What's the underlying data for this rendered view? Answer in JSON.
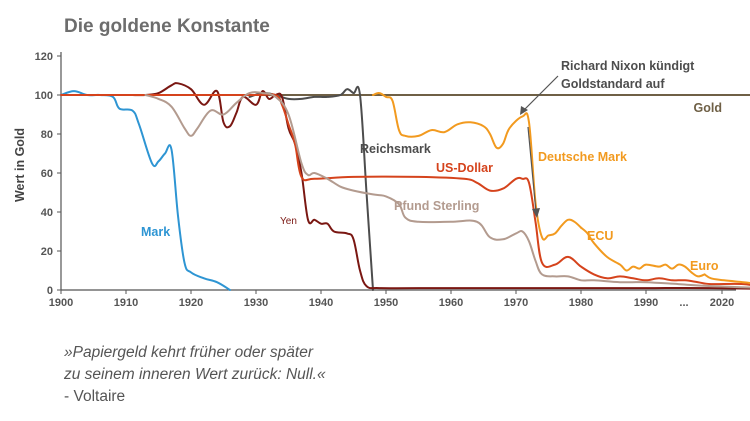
{
  "title": "Die goldene Konstante",
  "quote": {
    "lines": [
      "»Papiergeld kehrt früher oder später",
      "zu seinem inneren Wert zurück: Null.«"
    ],
    "author": "- Voltaire"
  },
  "chart_data": {
    "type": "line",
    "ylabel": "Wert in Gold",
    "ylim": [
      0,
      120
    ],
    "yticks": [
      0,
      20,
      40,
      60,
      80,
      100,
      120
    ],
    "xticks": [
      "1900",
      "1910",
      "1920",
      "1930",
      "1940",
      "1950",
      "1960",
      "1970",
      "1980",
      "1990",
      "...",
      "2020"
    ],
    "grid": false,
    "annotation": [
      "Richard Nixon kündigt",
      "Goldstandard auf"
    ],
    "series": [
      {
        "name": "Gold",
        "color": "#6f6046",
        "points": [
          [
            1900,
            100
          ],
          [
            2020,
            100
          ]
        ]
      },
      {
        "name": "Mark",
        "color": "#2e95d3",
        "points": [
          [
            1900,
            100
          ],
          [
            1902,
            102
          ],
          [
            1904,
            100
          ],
          [
            1906,
            100
          ],
          [
            1908,
            99
          ],
          [
            1909,
            93
          ],
          [
            1911,
            92
          ],
          [
            1912,
            85
          ],
          [
            1914,
            65
          ],
          [
            1915,
            66
          ],
          [
            1916,
            70
          ],
          [
            1917,
            72
          ],
          [
            1918,
            38
          ],
          [
            1919,
            14
          ],
          [
            1920,
            9
          ],
          [
            1922,
            6
          ],
          [
            1924,
            4
          ],
          [
            1926,
            0
          ]
        ]
      },
      {
        "name": "Reichsmark",
        "color": "#4d4d4d",
        "points": [
          [
            1929,
            99
          ],
          [
            1931,
            101
          ],
          [
            1933,
            100
          ],
          [
            1935,
            98
          ],
          [
            1937,
            98
          ],
          [
            1939,
            99
          ],
          [
            1941,
            99
          ],
          [
            1943,
            100
          ],
          [
            1944,
            103
          ],
          [
            1945,
            101
          ],
          [
            1946,
            100
          ],
          [
            1947,
            50
          ],
          [
            1948,
            0
          ]
        ]
      },
      {
        "name": "Yen",
        "color": "#7a1712",
        "points": [
          [
            1911,
            100
          ],
          [
            1913,
            100
          ],
          [
            1915,
            101
          ],
          [
            1917,
            105
          ],
          [
            1918,
            106
          ],
          [
            1920,
            103
          ],
          [
            1922,
            95
          ],
          [
            1924,
            102
          ],
          [
            1925,
            86
          ],
          [
            1926,
            84
          ],
          [
            1927,
            91
          ],
          [
            1928,
            99
          ],
          [
            1930,
            95
          ],
          [
            1931,
            102
          ],
          [
            1932,
            98
          ],
          [
            1933,
            100
          ],
          [
            1934,
            99
          ],
          [
            1935,
            83
          ],
          [
            1936,
            75
          ],
          [
            1937,
            60
          ],
          [
            1938,
            36
          ],
          [
            1939,
            36
          ],
          [
            1940,
            34
          ],
          [
            1941,
            34
          ],
          [
            1942,
            30
          ],
          [
            1944,
            29
          ],
          [
            1945,
            26
          ],
          [
            1946,
            10
          ],
          [
            1947,
            2
          ],
          [
            1949,
            1
          ],
          [
            1955,
            1
          ],
          [
            1970,
            1
          ],
          [
            1980,
            1
          ],
          [
            1990,
            1
          ],
          [
            2000,
            1
          ],
          [
            2020,
            0
          ]
        ]
      },
      {
        "name": "US-Dollar",
        "color": "#d5431c",
        "points": [
          [
            1900,
            100
          ],
          [
            1910,
            100
          ],
          [
            1920,
            100
          ],
          [
            1930,
            100
          ],
          [
            1933,
            100
          ],
          [
            1934,
            95
          ],
          [
            1935,
            85
          ],
          [
            1936,
            75
          ],
          [
            1937,
            58
          ],
          [
            1939,
            57
          ],
          [
            1945,
            58
          ],
          [
            1955,
            58
          ],
          [
            1962,
            57
          ],
          [
            1964,
            55
          ],
          [
            1966,
            51
          ],
          [
            1968,
            52
          ],
          [
            1970,
            57
          ],
          [
            1971,
            57
          ],
          [
            1972,
            55
          ],
          [
            1973,
            35
          ],
          [
            1974,
            14
          ],
          [
            1976,
            13
          ],
          [
            1978,
            17
          ],
          [
            1980,
            12
          ],
          [
            1982,
            8
          ],
          [
            1984,
            6
          ],
          [
            1986,
            7
          ],
          [
            1988,
            6
          ],
          [
            1990,
            5
          ],
          [
            1992,
            6
          ],
          [
            1994,
            5
          ],
          [
            1996,
            5
          ],
          [
            1998,
            4
          ],
          [
            2000,
            3
          ],
          [
            2005,
            3
          ],
          [
            2010,
            1
          ],
          [
            2020,
            1
          ]
        ]
      },
      {
        "name": "Pfund Sterling",
        "color": "#b39b8f",
        "points": [
          [
            1913,
            100
          ],
          [
            1915,
            98
          ],
          [
            1917,
            94
          ],
          [
            1919,
            83
          ],
          [
            1920,
            79
          ],
          [
            1921,
            83
          ],
          [
            1923,
            92
          ],
          [
            1925,
            90
          ],
          [
            1927,
            96
          ],
          [
            1929,
            101
          ],
          [
            1931,
            101
          ],
          [
            1933,
            99
          ],
          [
            1935,
            90
          ],
          [
            1937,
            65
          ],
          [
            1938,
            59
          ],
          [
            1939,
            60
          ],
          [
            1941,
            57
          ],
          [
            1943,
            53
          ],
          [
            1945,
            51
          ],
          [
            1948,
            49
          ],
          [
            1950,
            48
          ],
          [
            1952,
            44
          ],
          [
            1953,
            37
          ],
          [
            1955,
            35
          ],
          [
            1960,
            35
          ],
          [
            1964,
            35
          ],
          [
            1966,
            27
          ],
          [
            1968,
            26
          ],
          [
            1970,
            29
          ],
          [
            1971,
            30
          ],
          [
            1972,
            25
          ],
          [
            1973,
            15
          ],
          [
            1974,
            8
          ],
          [
            1976,
            7
          ],
          [
            1978,
            7
          ],
          [
            1980,
            5
          ],
          [
            1982,
            5
          ],
          [
            1986,
            4
          ],
          [
            1990,
            4
          ],
          [
            1995,
            3
          ],
          [
            2000,
            2
          ],
          [
            2010,
            1
          ],
          [
            2020,
            1
          ]
        ]
      },
      {
        "name": "Deutsche Mark",
        "color": "#f29a1f",
        "points": [
          [
            1948,
            100
          ],
          [
            1949,
            101
          ],
          [
            1950,
            99
          ],
          [
            1951,
            97
          ],
          [
            1952,
            82
          ],
          [
            1953,
            79
          ],
          [
            1955,
            79
          ],
          [
            1957,
            82
          ],
          [
            1959,
            81
          ],
          [
            1961,
            85
          ],
          [
            1963,
            86
          ],
          [
            1965,
            84
          ],
          [
            1966,
            80
          ],
          [
            1967,
            73
          ],
          [
            1968,
            75
          ],
          [
            1969,
            83
          ],
          [
            1971,
            89
          ],
          [
            1972,
            86
          ],
          [
            1973,
            45
          ],
          [
            1974,
            27
          ],
          [
            1975,
            28
          ],
          [
            1976,
            29
          ],
          [
            1977,
            33
          ],
          [
            1978,
            36
          ],
          [
            1979,
            35
          ],
          [
            1980,
            32
          ]
        ]
      },
      {
        "name": "ECU",
        "color": "#f29a1f",
        "points": [
          [
            1980,
            32
          ],
          [
            1981,
            29
          ],
          [
            1982,
            24
          ],
          [
            1984,
            17
          ],
          [
            1986,
            13
          ],
          [
            1987,
            10
          ],
          [
            1988,
            12
          ],
          [
            1989,
            11
          ],
          [
            1990,
            13
          ],
          [
            1992,
            12
          ],
          [
            1993,
            13
          ],
          [
            1994,
            11
          ],
          [
            1995,
            13
          ],
          [
            1996,
            12
          ],
          [
            1997,
            9
          ],
          [
            1998,
            7
          ],
          [
            1999,
            8
          ]
        ]
      },
      {
        "name": "Euro",
        "color": "#f29a1f",
        "points": [
          [
            1999,
            8
          ],
          [
            2000,
            6
          ],
          [
            2002,
            5
          ],
          [
            2005,
            4
          ],
          [
            2008,
            3
          ],
          [
            2012,
            3
          ],
          [
            2016,
            2
          ],
          [
            2020,
            2
          ]
        ]
      }
    ]
  }
}
